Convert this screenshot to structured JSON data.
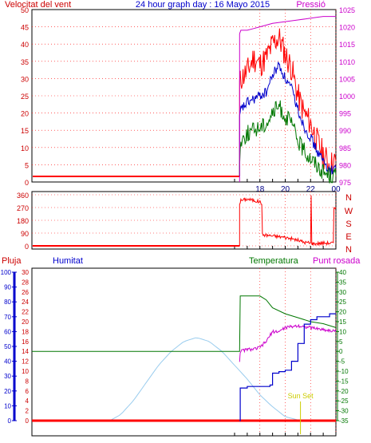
{
  "header": {
    "title": "24 hour graph day : 16 Mayo 2015",
    "left_label": "Velocitat del vent",
    "right_label": "Pressió"
  },
  "colors": {
    "wind": "#ff0000",
    "wind_avg": "#0000cc",
    "wind_low": "#007700",
    "pressure": "#cc00cc",
    "direction": "#ff0000",
    "rain": "#ff0000",
    "humidity": "#0000cc",
    "temperature": "#007700",
    "dewpoint": "#cc00cc",
    "solar": "#99ccee",
    "grid": "#ff0000",
    "sunset": "#cccc00"
  },
  "middle": {
    "compass": [
      "N",
      "W",
      "S",
      "E",
      "N"
    ]
  },
  "lower": {
    "labels": {
      "rain": "Pluja",
      "humidity": "Humitat",
      "temperature": "Temperatura",
      "dewpoint": "Punt rosada"
    },
    "annotation": "Sun Set"
  },
  "chart_data": [
    {
      "type": "line",
      "title": "24 hour graph day : 16 Mayo 2015",
      "ylabel": "Velocitat del vent",
      "y2label": "Pressió",
      "ylim": [
        0,
        50
      ],
      "y2lim": [
        975,
        1025
      ],
      "yticks": [
        0,
        5,
        10,
        15,
        20,
        25,
        30,
        35,
        40,
        45,
        50
      ],
      "y2ticks": [
        975,
        980,
        985,
        990,
        995,
        1000,
        1005,
        1010,
        1015,
        1020,
        1025
      ],
      "xticks": [
        "18",
        "20",
        "22",
        "00"
      ],
      "series": [
        {
          "axis": "left",
          "color": "#ff0000",
          "style": "jagged",
          "x": [
            16.4,
            16.5,
            17,
            17.5,
            18,
            18.5,
            19,
            19.5,
            20,
            20.5,
            21,
            21.5,
            22,
            22.5,
            23,
            23.5,
            24
          ],
          "values": [
            28,
            30,
            32,
            36,
            34,
            36,
            40,
            42,
            37,
            33,
            25,
            20,
            17,
            12,
            8,
            5,
            6
          ]
        },
        {
          "axis": "left",
          "color": "#0000cc",
          "style": "jagged",
          "x": [
            16.4,
            16.5,
            17,
            17.5,
            18,
            18.5,
            19,
            19.5,
            20,
            20.5,
            21,
            21.5,
            22,
            22.5,
            23,
            23.5,
            24
          ],
          "values": [
            18,
            21,
            23,
            24,
            25,
            26,
            31,
            34,
            30,
            27,
            21,
            16,
            13,
            9,
            6,
            3,
            4
          ]
        },
        {
          "axis": "left",
          "color": "#007700",
          "style": "jagged",
          "x": [
            16.4,
            16.5,
            17,
            17.5,
            18,
            18.5,
            19,
            19.5,
            20,
            20.5,
            21,
            21.5,
            22,
            22.5,
            23,
            23.5,
            24
          ],
          "values": [
            6,
            12,
            14,
            15,
            16,
            17,
            20,
            22,
            19,
            17,
            12,
            9,
            7,
            5,
            3,
            2,
            2
          ]
        },
        {
          "axis": "right",
          "color": "#cc00cc",
          "style": "smooth",
          "x": [
            16.4,
            16.5,
            17,
            17.5,
            18,
            19,
            20,
            21,
            22,
            23,
            24
          ],
          "values": [
            1018,
            1019,
            1019,
            1019.5,
            1020,
            1021,
            1021.5,
            1022,
            1022.5,
            1023,
            1023
          ]
        }
      ]
    },
    {
      "type": "line",
      "ylim": [
        0,
        360
      ],
      "yticks": [
        0,
        90,
        180,
        270,
        360
      ],
      "series": [
        {
          "color": "#ff0000",
          "style": "jagged",
          "x": [
            16.4,
            16.5,
            17,
            17.5,
            18,
            18.15,
            18.2,
            18.5,
            19,
            19.5,
            20,
            20.5,
            21,
            21.5,
            22,
            22.05,
            22.1,
            22.15,
            22.2,
            23,
            23.8,
            23.85,
            24
          ],
          "values": [
            300,
            320,
            330,
            320,
            310,
            300,
            80,
            75,
            70,
            65,
            60,
            50,
            40,
            25,
            20,
            350,
            20,
            15,
            15,
            20,
            20,
            270,
            270
          ]
        }
      ]
    },
    {
      "type": "line",
      "ylabel": "Pluja",
      "y2label": "Temperatura",
      "ylim": [
        0,
        30
      ],
      "y2lim": [
        -35,
        40
      ],
      "yticks": [
        0,
        2,
        4,
        6,
        8,
        10,
        12,
        14,
        16,
        18,
        20,
        22,
        24,
        26,
        28,
        30
      ],
      "y2ticks": [
        -35,
        -30,
        -25,
        -20,
        -15,
        -10,
        -5,
        0,
        5,
        10,
        15,
        20,
        25,
        30,
        35,
        40
      ],
      "humidity_ticks": [
        0,
        10,
        20,
        30,
        40,
        50,
        60,
        70,
        80,
        90,
        100
      ],
      "series": [
        {
          "name": "Humitat",
          "axis": "humidity",
          "color": "#0000cc",
          "style": "step",
          "x": [
            16.4,
            16.45,
            17,
            18,
            18.8,
            19,
            19.5,
            20,
            20.5,
            21,
            21.5,
            22,
            22.5,
            23,
            23.5,
            24
          ],
          "values": [
            0,
            22,
            23,
            23,
            24,
            32,
            33,
            34,
            40,
            52,
            65,
            68,
            70,
            70,
            72,
            72
          ]
        },
        {
          "name": "Temperatura",
          "axis": "right",
          "color": "#007700",
          "style": "smooth",
          "x": [
            0,
            16.4,
            16.45,
            17,
            18,
            18.5,
            19,
            20,
            21,
            22,
            23,
            24
          ],
          "values": [
            0,
            0,
            28,
            28,
            28,
            26,
            22,
            19,
            17,
            15,
            14,
            12
          ]
        },
        {
          "name": "Punt rosada",
          "axis": "right",
          "color": "#cc00cc",
          "style": "jagged",
          "x": [
            16.4,
            16.45,
            17,
            17.5,
            18,
            18.5,
            19,
            19.5,
            20,
            21,
            22,
            23,
            24
          ],
          "values": [
            -5,
            0,
            1,
            1,
            2,
            5,
            10,
            10,
            12,
            13,
            12,
            11,
            10
          ]
        },
        {
          "name": "Pluja",
          "axis": "left",
          "color": "#ff0000",
          "style": "smooth",
          "x": [
            0,
            24
          ],
          "values": [
            0,
            0
          ]
        },
        {
          "axis": "right",
          "color": "#99ccee",
          "style": "smooth",
          "x": [
            6.15,
            7,
            8,
            9,
            10,
            11,
            12,
            13,
            14,
            15,
            16,
            17,
            18,
            19,
            20,
            21.2
          ],
          "values": [
            -35,
            -32,
            -25,
            -16,
            -7,
            0,
            5,
            7,
            5,
            0,
            -7,
            -14,
            -22,
            -28,
            -33,
            -35
          ]
        }
      ],
      "annotation": {
        "text": "Sun Set",
        "x": 21.2
      }
    }
  ]
}
